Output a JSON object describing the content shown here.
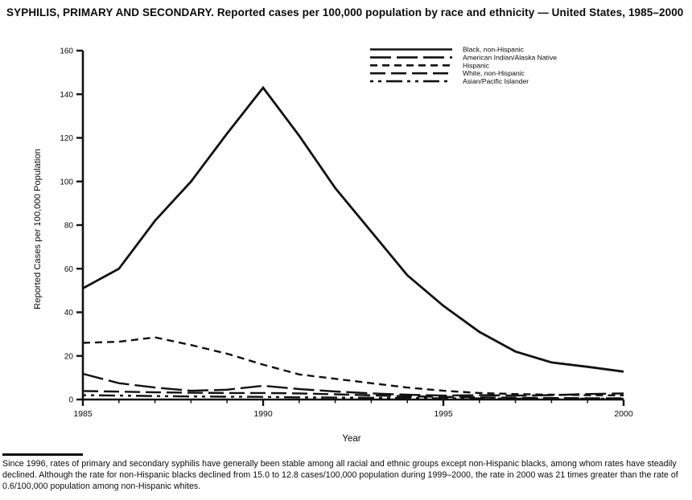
{
  "title": "SYPHILIS, PRIMARY AND SECONDARY. Reported cases per 100,000 population by race and ethnicity — United States, 1985–2000",
  "chart_data": {
    "type": "line",
    "title": "SYPHILIS, PRIMARY AND SECONDARY. Reported cases per 100,000 population by race and ethnicity — United States, 1985–2000",
    "xlabel": "Year",
    "ylabel": "Reported Cases per 100,000 Population",
    "ylim": [
      0,
      160
    ],
    "y_ticks": [
      0,
      20,
      40,
      60,
      80,
      100,
      120,
      140,
      160
    ],
    "x_ticks_major": [
      1985,
      1990,
      1995,
      2000
    ],
    "x_ticks_minor_every": 1,
    "grid": false,
    "legend_position": "top-right",
    "line_color": "#111111",
    "x": [
      1985,
      1986,
      1987,
      1988,
      1989,
      1990,
      1991,
      1992,
      1993,
      1994,
      1995,
      1996,
      1997,
      1998,
      1999,
      2000
    ],
    "series": [
      {
        "name": "Black, non-Hispanic",
        "line_style": "solid",
        "values": [
          51,
          60,
          82,
          100,
          122,
          143,
          121,
          97,
          77,
          57,
          43,
          31,
          22,
          17,
          15,
          12.8
        ]
      },
      {
        "name": "American Indian/Alaska Native",
        "line_style": "long-dash",
        "values": [
          11.8,
          7.5,
          5.5,
          4,
          4.5,
          6.3,
          4.8,
          3.7,
          2.8,
          2.2,
          1.8,
          2,
          1.8,
          2,
          2.5,
          2.8
        ]
      },
      {
        "name": "Hispanic",
        "line_style": "short-dash",
        "values": [
          26,
          26.5,
          28.5,
          25,
          21,
          16,
          11.5,
          9.5,
          7.5,
          5.5,
          4,
          3,
          2.5,
          2.2,
          2,
          1.9
        ]
      },
      {
        "name": "White, non-Hispanic",
        "line_style": "medium-dash",
        "values": [
          3.9,
          3.6,
          3.3,
          3.1,
          3,
          3,
          2.8,
          2.4,
          1.9,
          1.5,
          1.2,
          1,
          0.8,
          0.7,
          0.6,
          0.6
        ]
      },
      {
        "name": "Asian/Pacific Islander",
        "line_style": "dash-dot-dot",
        "values": [
          2,
          1.8,
          1.6,
          1.4,
          1.3,
          1.2,
          1,
          0.9,
          0.8,
          0.7,
          0.5,
          0.5,
          0.4,
          0.4,
          0.4,
          0.4
        ]
      }
    ]
  },
  "footnote": "Since 1996, rates of primary and secondary syphilis have generally been stable among all racial and ethnic groups except non-Hispanic blacks, among whom rates have steadily declined. Although the rate for non-Hispanic blacks declined from 15.0 to 12.8 cases/100,000 population during 1999–2000, the rate in 2000 was 21 times greater than the rate of 0.6/100,000 population among non-Hispanic whites."
}
